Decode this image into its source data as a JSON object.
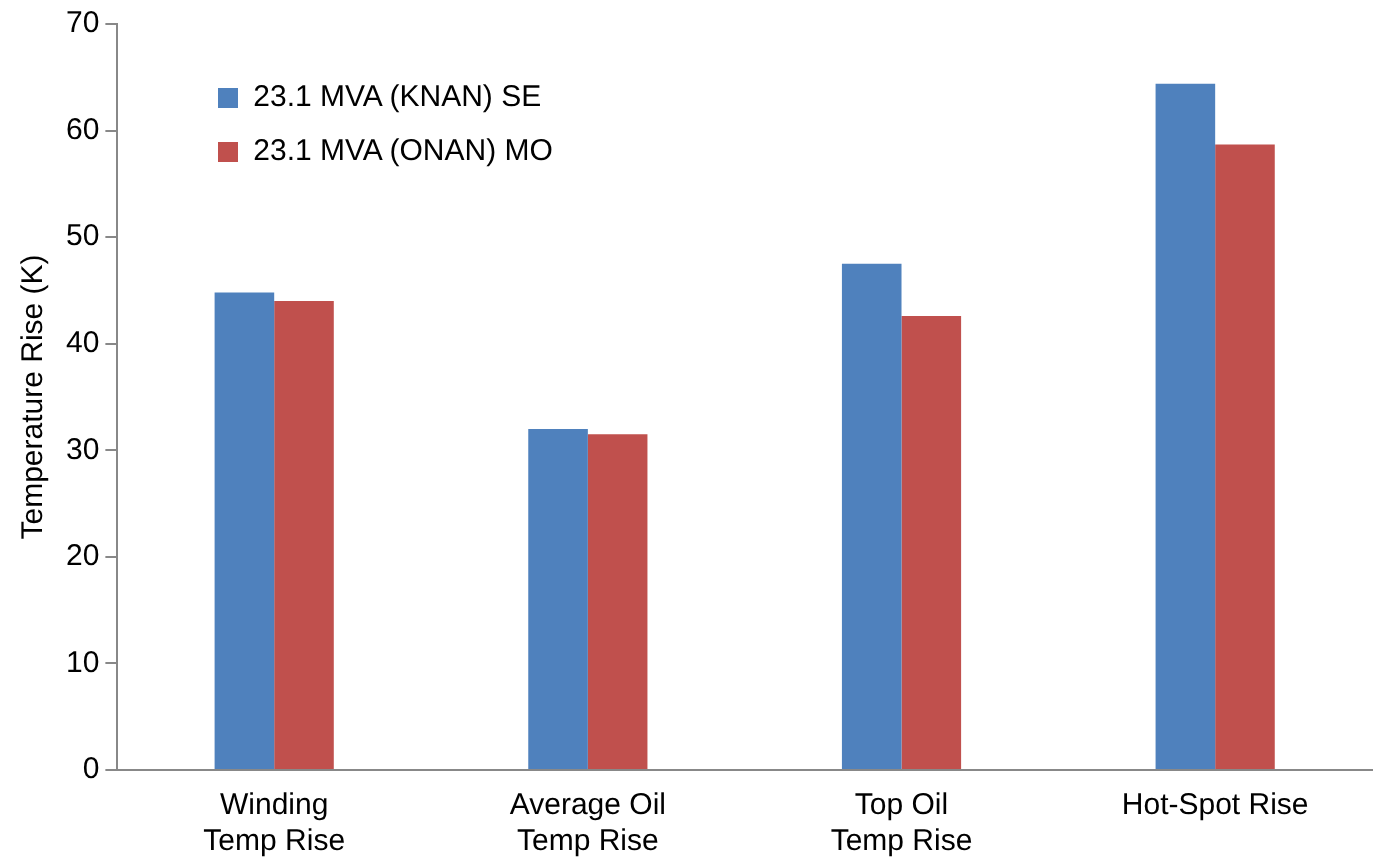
{
  "chart_data": {
    "type": "bar",
    "ylabel": "Temperature Rise (K)",
    "categories": [
      "Winding\nTemp Rise",
      "Average Oil\nTemp Rise",
      "Top Oil\nTemp Rise",
      "Hot-Spot Rise"
    ],
    "series": [
      {
        "name": "23.1 MVA (KNAN) SE",
        "color": "#4f81bd",
        "values": [
          44.8,
          32,
          47.5,
          64.4
        ]
      },
      {
        "name": "23.1 MVA (ONAN) MO",
        "color": "#c0504d",
        "values": [
          44,
          31.5,
          42.6,
          58.7
        ]
      }
    ],
    "ylim": [
      0,
      70
    ],
    "yticks": [
      0,
      10,
      20,
      30,
      40,
      50,
      60,
      70
    ],
    "grid": false,
    "legend": "top left"
  }
}
